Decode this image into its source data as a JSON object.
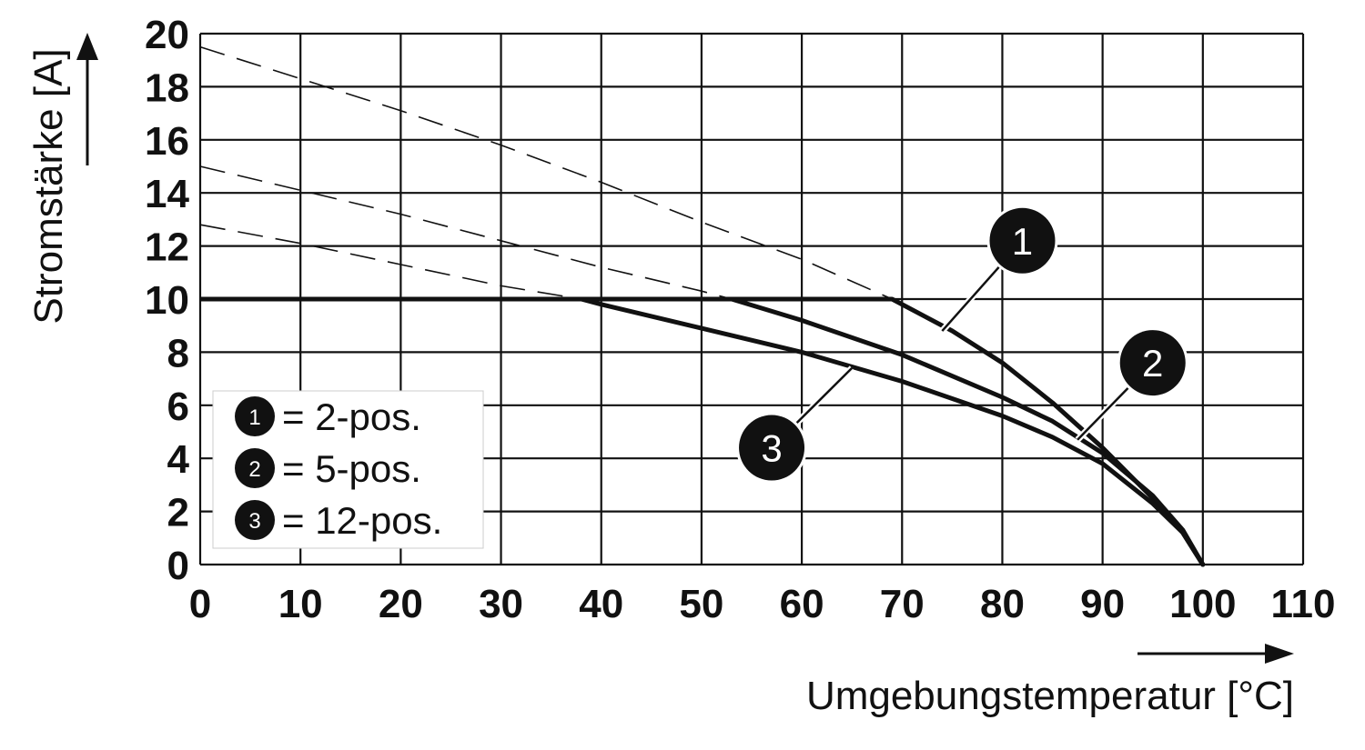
{
  "chart_data": {
    "type": "line",
    "title": "",
    "xlabel": "Umgebungstemperatur [°C]",
    "ylabel": "Stromstärke [A]",
    "xlim": [
      0,
      110
    ],
    "ylim": [
      0,
      20
    ],
    "x_ticks": [
      "0",
      "10",
      "20",
      "30",
      "40",
      "50",
      "60",
      "70",
      "80",
      "90",
      "100",
      "110"
    ],
    "y_ticks": [
      "0",
      "2",
      "4",
      "6",
      "8",
      "10",
      "12",
      "14",
      "16",
      "18",
      "20"
    ],
    "grid": true,
    "legend_position": "bottom-left",
    "legend": [
      {
        "marker": "1",
        "text": "= 2-pos."
      },
      {
        "marker": "2",
        "text": "= 5-pos."
      },
      {
        "marker": "3",
        "text": "= 12-pos."
      }
    ],
    "current_limit": {
      "value": 10,
      "x": [
        0,
        69
      ]
    },
    "series": [
      {
        "name": "1",
        "marker_label": "1",
        "marker_at": [
          82,
          12.2
        ],
        "leader_to": [
          74,
          8.8
        ],
        "x": [
          0,
          10,
          20,
          30,
          40,
          50,
          60,
          69,
          75,
          80,
          85,
          90,
          95,
          98,
          100
        ],
        "y": [
          19.5,
          18.3,
          17.1,
          15.8,
          14.4,
          12.9,
          11.5,
          10,
          8.8,
          7.6,
          6.1,
          4.4,
          2.5,
          1.2,
          0
        ]
      },
      {
        "name": "2",
        "marker_label": "2",
        "marker_at": [
          95,
          7.6
        ],
        "leader_to": [
          87.5,
          4.7
        ],
        "x": [
          0,
          10,
          20,
          30,
          40,
          50,
          53,
          60,
          70,
          80,
          85,
          90,
          95,
          98,
          100
        ],
        "y": [
          15,
          14.1,
          13.2,
          12.2,
          11.2,
          10.3,
          10,
          9.2,
          7.9,
          6.3,
          5.4,
          4.2,
          2.6,
          1.3,
          0
        ]
      },
      {
        "name": "3",
        "marker_label": "3",
        "marker_at": [
          57,
          4.4
        ],
        "leader_to": [
          65,
          7.4
        ],
        "x": [
          0,
          10,
          20,
          30,
          38,
          40,
          50,
          60,
          70,
          80,
          85,
          90,
          95,
          98,
          100
        ],
        "y": [
          12.8,
          12.1,
          11.3,
          10.5,
          10,
          9.8,
          8.9,
          8,
          6.9,
          5.6,
          4.8,
          3.8,
          2.3,
          1.2,
          0
        ]
      }
    ]
  }
}
